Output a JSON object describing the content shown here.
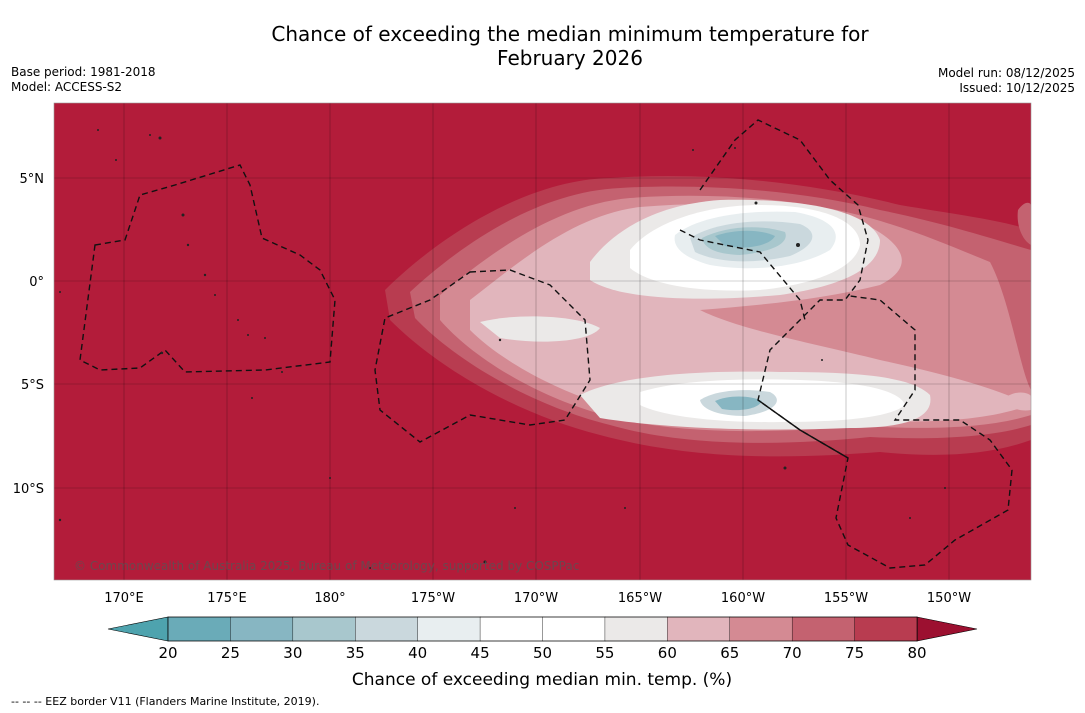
{
  "title": {
    "line1": "Chance of exceeding the median minimum temperature for",
    "line2": "February 2026"
  },
  "meta": {
    "base_period": "Base period: 1981-2018",
    "model": "Model: ACCESS-S2",
    "model_run": "Model run: 08/12/2025",
    "issued": "Issued: 10/12/2025"
  },
  "map": {
    "copyright": "© Commonwealth of Australia 2025, Bureau of Meteorology, supported by COSPPac",
    "lat_labels": [
      "5°N",
      "0°",
      "5°S",
      "10°S"
    ],
    "lon_labels": [
      "170°E",
      "175°E",
      "180°",
      "175°W",
      "170°W",
      "165°W",
      "160°W",
      "155°W",
      "150°W"
    ],
    "background_color": "#b31c3a"
  },
  "colorbar": {
    "title": "Chance of exceeding median min. temp. (%)",
    "ticks": [
      "20",
      "25",
      "30",
      "35",
      "40",
      "45",
      "50",
      "55",
      "60",
      "65",
      "70",
      "75",
      "80"
    ],
    "colors": [
      "#6aabb8",
      "#87b6c2",
      "#a8c7cd",
      "#cad8dd",
      "#e8eef0",
      "#ffffff",
      "#ffffff",
      "#ebe9e8",
      "#e1b5bc",
      "#d48a93",
      "#c46270",
      "#b83c50"
    ],
    "under_color": "#4ea3ae",
    "over_color": "#9c1030"
  },
  "footer": {
    "eez_note": "--  --  -- EEZ border V11 (Flanders Marine Institute, 2019)."
  }
}
